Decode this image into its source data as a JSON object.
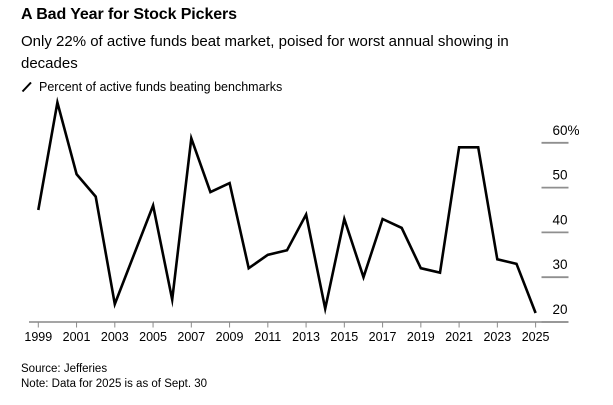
{
  "header": {
    "title": "A Bad Year for Stock Pickers",
    "subtitle": "Only 22% of active funds beat market, poised for worst annual showing in decades"
  },
  "legend": {
    "marker": "diagonal-line",
    "marker_color": "#000000",
    "label": "Percent of active funds beating benchmarks"
  },
  "chart_data": {
    "type": "line",
    "title": "A Bad Year for Stock Pickers",
    "series_name": "Percent of active funds beating benchmarks",
    "x": [
      1999,
      2000,
      2001,
      2002,
      2003,
      2004,
      2005,
      2006,
      2007,
      2008,
      2009,
      2010,
      2011,
      2012,
      2013,
      2014,
      2015,
      2016,
      2017,
      2018,
      2019,
      2020,
      2021,
      2022,
      2023,
      2024,
      2025
    ],
    "values": [
      45,
      69,
      53,
      48,
      24,
      35,
      46,
      25,
      61,
      49,
      51,
      32,
      35,
      36,
      44,
      23,
      43,
      30,
      43,
      41,
      32,
      31,
      59,
      59,
      34,
      33,
      22
    ],
    "xlabel": "",
    "ylabel": "",
    "xtick_labels": [
      "1999",
      "2001",
      "2003",
      "2005",
      "2007",
      "2009",
      "2011",
      "2013",
      "2015",
      "2017",
      "2019",
      "2021",
      "2023",
      "2025"
    ],
    "xticks": [
      1999,
      2001,
      2003,
      2005,
      2007,
      2009,
      2011,
      2013,
      2015,
      2017,
      2019,
      2021,
      2023,
      2025
    ],
    "yticks": [
      20,
      30,
      40,
      50,
      60
    ],
    "ytick_labels": [
      "20",
      "30",
      "40",
      "50",
      "60%"
    ],
    "ylim": [
      18,
      70
    ],
    "grid": "off",
    "legend_position": "top-left",
    "axis_side": "right",
    "line_color": "#000000",
    "axis_color": "#6f6f6f",
    "tick_color": "#8a8a8a"
  },
  "footer": {
    "source": "Source: Jefferies",
    "note": "Note: Data for 2025 is as of Sept. 30"
  }
}
